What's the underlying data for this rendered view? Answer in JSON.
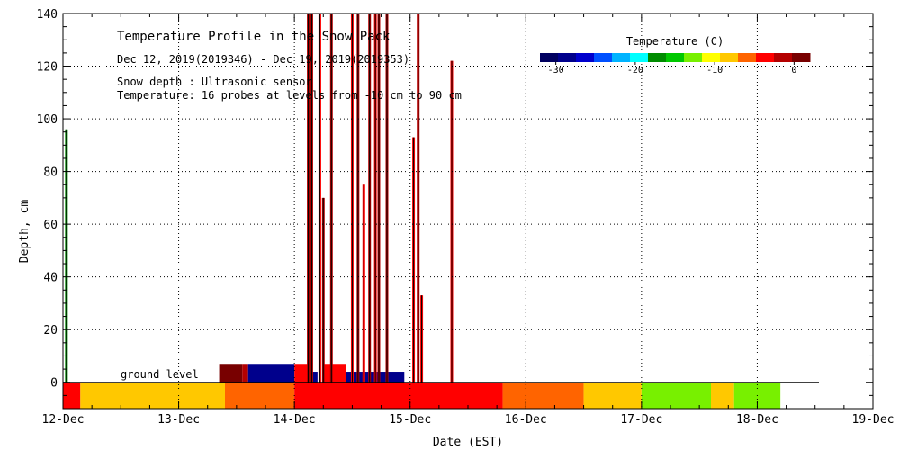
{
  "chart_data": {
    "type": "heatmap",
    "title": "Temperature Profile in the Snow Pack",
    "subtitle": "Dec 12, 2019(2019346) - Dec 19, 2019(2019353)",
    "info_lines": [
      "Snow depth : Ultrasonic sensor",
      "Temperature: 16 probes at levels from -10 cm to 90 cm"
    ],
    "xlabel": "Date (EST)",
    "ylabel": "Depth, cm",
    "x_ticks": [
      "12-Dec",
      "13-Dec",
      "14-Dec",
      "15-Dec",
      "16-Dec",
      "17-Dec",
      "18-Dec",
      "19-Dec"
    ],
    "xlim_days": [
      0,
      7
    ],
    "ylim": [
      -10,
      140
    ],
    "y_ticks": [
      0,
      20,
      40,
      60,
      80,
      100,
      120,
      140
    ],
    "grid": true,
    "ground_label": "ground level",
    "colorbar": {
      "title": "Temperature (C)",
      "range": [
        -32,
        2
      ],
      "tick_values": [
        -30,
        -20,
        -10,
        0
      ],
      "tick_labels": [
        "-30",
        "-20",
        "-10",
        "0"
      ],
      "colors": [
        "#000060",
        "#00008c",
        "#0000cd",
        "#0050ff",
        "#00b4ff",
        "#00ffff",
        "#008c00",
        "#00c800",
        "#78f000",
        "#ffff00",
        "#ffc800",
        "#ff6400",
        "#ff0000",
        "#b40000",
        "#780000"
      ]
    },
    "ground_bands": [
      {
        "from_day": 0.0,
        "to_day": 0.15,
        "color": "#ff0000"
      },
      {
        "from_day": 0.15,
        "to_day": 1.4,
        "color": "#ffc800"
      },
      {
        "from_day": 1.4,
        "to_day": 2.0,
        "color": "#ff6400"
      },
      {
        "from_day": 2.0,
        "to_day": 3.8,
        "color": "#ff0000"
      },
      {
        "from_day": 3.8,
        "to_day": 4.5,
        "color": "#ff6400"
      },
      {
        "from_day": 4.5,
        "to_day": 5.0,
        "color": "#ffc800"
      },
      {
        "from_day": 5.0,
        "to_day": 5.6,
        "color": "#78f000"
      },
      {
        "from_day": 5.6,
        "to_day": 5.8,
        "color": "#ffc800"
      },
      {
        "from_day": 5.8,
        "to_day": 6.2,
        "color": "#78f000"
      }
    ],
    "snow_blocks": [
      {
        "from_day": 1.35,
        "to_day": 1.55,
        "top": 7,
        "color": "#780000"
      },
      {
        "from_day": 1.55,
        "to_day": 1.6,
        "top": 7,
        "color": "#b40000"
      },
      {
        "from_day": 1.6,
        "to_day": 2.0,
        "top": 7,
        "color": "#00008c"
      },
      {
        "from_day": 2.0,
        "to_day": 2.12,
        "top": 7,
        "color": "#ff0000"
      },
      {
        "from_day": 2.12,
        "to_day": 2.2,
        "top": 4,
        "color": "#00008c"
      },
      {
        "from_day": 2.25,
        "to_day": 2.45,
        "top": 7,
        "color": "#ff0000"
      },
      {
        "from_day": 2.45,
        "to_day": 2.95,
        "top": 4,
        "color": "#00008c"
      }
    ],
    "spikes": [
      {
        "day": 0.03,
        "depth": 96,
        "color": "#008c00"
      },
      {
        "day": 2.12,
        "depth": 140,
        "color": "#b40000"
      },
      {
        "day": 2.15,
        "depth": 140,
        "color": "#b40000"
      },
      {
        "day": 2.22,
        "depth": 140,
        "color": "#ff0000"
      },
      {
        "day": 2.25,
        "depth": 70,
        "color": "#b40000"
      },
      {
        "day": 2.32,
        "depth": 140,
        "color": "#b40000"
      },
      {
        "day": 2.5,
        "depth": 140,
        "color": "#ff0000"
      },
      {
        "day": 2.55,
        "depth": 140,
        "color": "#b40000"
      },
      {
        "day": 2.6,
        "depth": 75,
        "color": "#ff0000"
      },
      {
        "day": 2.65,
        "depth": 140,
        "color": "#b40000"
      },
      {
        "day": 2.7,
        "depth": 140,
        "color": "#ff0000"
      },
      {
        "day": 2.73,
        "depth": 140,
        "color": "#b40000"
      },
      {
        "day": 2.8,
        "depth": 140,
        "color": "#b40000"
      },
      {
        "day": 3.03,
        "depth": 93,
        "color": "#ff0000"
      },
      {
        "day": 3.07,
        "depth": 140,
        "color": "#b40000"
      },
      {
        "day": 3.1,
        "depth": 33,
        "color": "#ff0000"
      },
      {
        "day": 3.36,
        "depth": 122,
        "color": "#ff0000"
      }
    ]
  }
}
